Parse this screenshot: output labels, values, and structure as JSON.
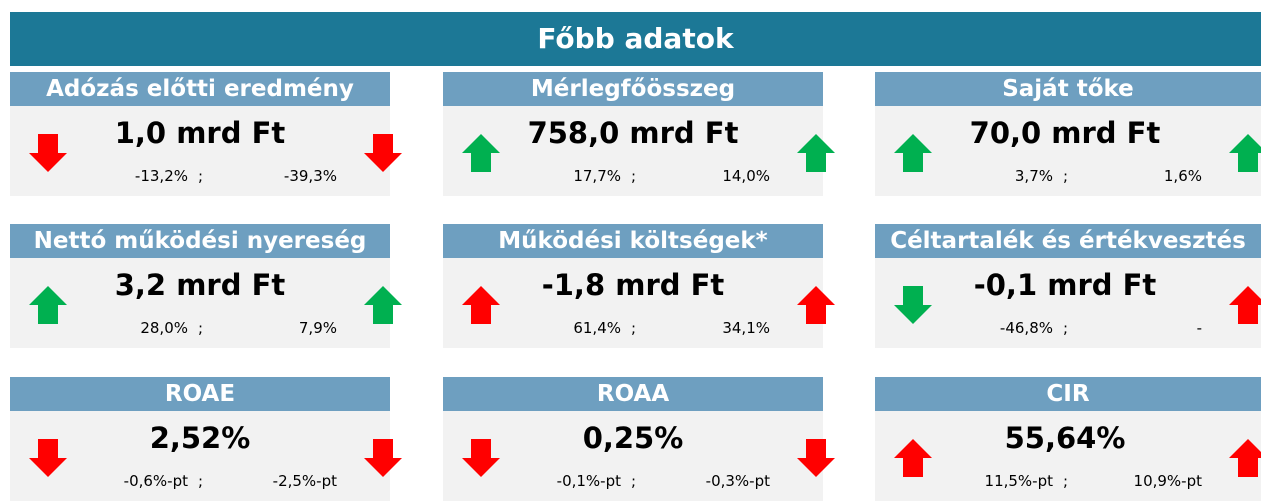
{
  "title": "Főbb adatok",
  "separator": ";",
  "cards": [
    {
      "title": "Adózás előtti eredmény",
      "value": "1,0 mrd Ft",
      "change1": "-13,2%",
      "change2": "-39,3%",
      "left_arrow": "down",
      "left_color": "#ff0000",
      "right_arrow": "down",
      "right_color": "#ff0000"
    },
    {
      "title": "Mérlegfőösszeg",
      "value": "758,0 mrd Ft",
      "change1": "17,7%",
      "change2": "14,0%",
      "left_arrow": "up",
      "left_color": "#00b050",
      "right_arrow": "up",
      "right_color": "#00b050"
    },
    {
      "title": "Saját tőke",
      "value": "70,0 mrd Ft",
      "change1": "3,7%",
      "change2": "1,6%",
      "left_arrow": "up",
      "left_color": "#00b050",
      "right_arrow": "up",
      "right_color": "#00b050"
    },
    {
      "title": "Nettó működési nyereség",
      "value": "3,2 mrd Ft",
      "change1": "28,0%",
      "change2": "7,9%",
      "left_arrow": "up",
      "left_color": "#00b050",
      "right_arrow": "up",
      "right_color": "#00b050"
    },
    {
      "title": "Működési költségek*",
      "value": "-1,8 mrd Ft",
      "change1": "61,4%",
      "change2": "34,1%",
      "left_arrow": "up",
      "left_color": "#ff0000",
      "right_arrow": "up",
      "right_color": "#ff0000"
    },
    {
      "title": "Céltartalék és értékvesztés",
      "value": "-0,1 mrd Ft",
      "change1": "-46,8%",
      "change2": "-",
      "left_arrow": "down",
      "left_color": "#00b050",
      "right_arrow": "up",
      "right_color": "#ff0000"
    },
    {
      "title": "ROAE",
      "value": "2,52%",
      "change1": "-0,6%-pt",
      "change2": "-2,5%-pt",
      "left_arrow": "down",
      "left_color": "#ff0000",
      "right_arrow": "down",
      "right_color": "#ff0000"
    },
    {
      "title": "ROAA",
      "value": "0,25%",
      "change1": "-0,1%-pt",
      "change2": "-0,3%-pt",
      "left_arrow": "down",
      "left_color": "#ff0000",
      "right_arrow": "down",
      "right_color": "#ff0000"
    },
    {
      "title": "CIR",
      "value": "55,64%",
      "change1": "11,5%-pt",
      "change2": "10,9%-pt",
      "left_arrow": "up",
      "left_color": "#ff0000",
      "right_arrow": "up",
      "right_color": "#ff0000"
    }
  ]
}
